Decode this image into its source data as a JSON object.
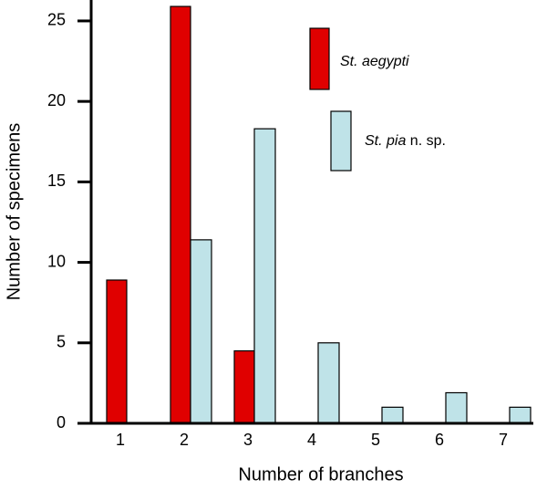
{
  "chart_data": {
    "type": "bar",
    "x_label": "Number of branches",
    "y_label": "Number of specimens",
    "categories": [
      "1",
      "2",
      "3",
      "4",
      "5",
      "6",
      "7"
    ],
    "series": [
      {
        "name": "St. aegypti",
        "color": "#e00000",
        "values": [
          8.9,
          25.9,
          4.5,
          0,
          0,
          0,
          0
        ]
      },
      {
        "name": "St. pia n. sp.",
        "color": "#bfe3e8",
        "values": [
          0,
          11.4,
          18.3,
          5.0,
          1.0,
          1.9,
          1.0
        ]
      }
    ],
    "ylim": [
      0,
      26.3
    ],
    "yticks": [
      0,
      5,
      10,
      15,
      20,
      25
    ]
  }
}
